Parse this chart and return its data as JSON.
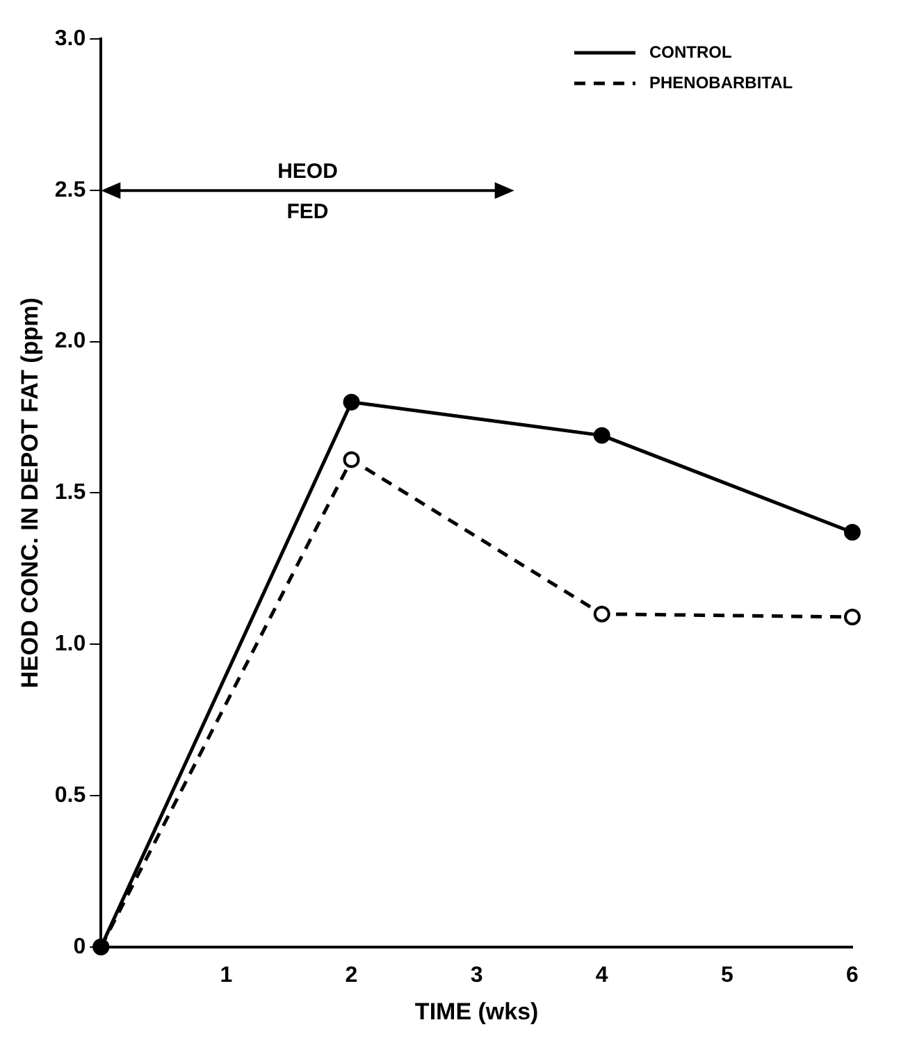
{
  "chart_data": {
    "type": "line",
    "xlabel": "TIME (wks)",
    "ylabel": "HEOD CONC. IN DEPOT FAT (ppm)",
    "x": [
      0,
      2,
      4,
      6
    ],
    "series": [
      {
        "name": "CONTROL",
        "color": "#000000",
        "values": [
          0,
          1.8,
          1.69,
          1.37
        ],
        "line_style": "solid"
      },
      {
        "name": "PHENOBARBITAL",
        "color": "#000000",
        "values": [
          0,
          1.61,
          1.1,
          1.09
        ],
        "line_style": "dashed"
      }
    ],
    "xlim": [
      0,
      6
    ],
    "xticks": [
      1,
      2,
      3,
      4,
      5,
      6
    ],
    "ylim": [
      0,
      3
    ],
    "yticks": [
      0,
      {
        "value": 0.5,
        "label": "0.5"
      },
      {
        "value": 1,
        "label": "1.0"
      },
      {
        "value": 1.5,
        "label": "1.5"
      },
      {
        "value": 2,
        "label": "2.0"
      },
      {
        "value": 2.5,
        "label": "2.5"
      },
      {
        "value": 3,
        "label": "3.0"
      }
    ],
    "grid": false,
    "legend": "top right",
    "marker": "circle",
    "annotations": [
      "HEOD\nFED"
    ]
  }
}
